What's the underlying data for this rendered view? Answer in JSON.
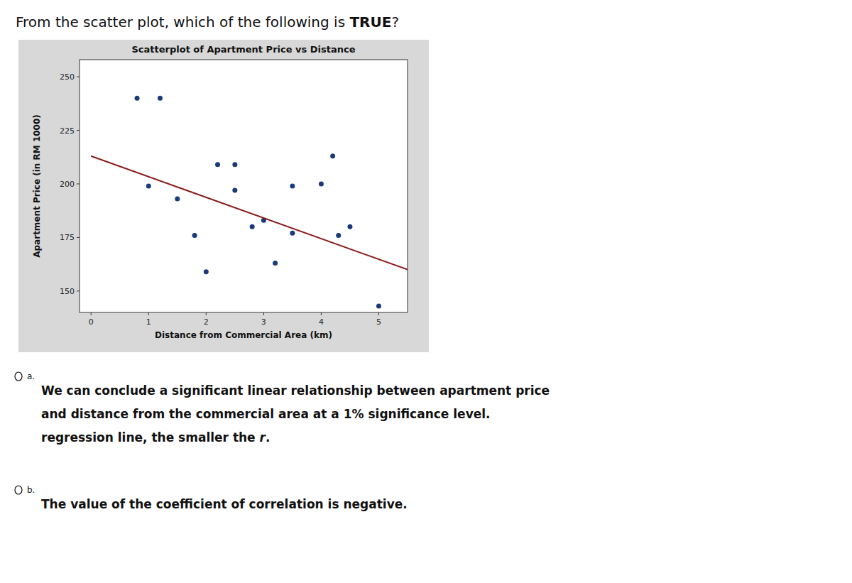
{
  "chart_data": {
    "type": "scatter",
    "title": "Scatterplot of Apartment Price vs Distance",
    "x_label": "Distance from Commercial Area (km)",
    "y_label": "Apartment Price (in RM 1000)",
    "series": [
      {
        "type": "scatter",
        "color": "#1a3a7a",
        "x": [
          0.8,
          1.2,
          1.0,
          1.5,
          1.8,
          2.0,
          2.2,
          2.5,
          2.5,
          2.8,
          3.0,
          3.2,
          3.5,
          3.5,
          4.0,
          4.2,
          4.3,
          4.5,
          5.0
        ],
        "values": [
          240,
          240,
          199,
          193,
          176,
          159,
          209,
          209,
          197,
          180,
          183,
          163,
          199,
          177,
          200,
          213,
          176,
          180,
          143
        ]
      },
      {
        "type": "line",
        "color": "#8b1a1a",
        "x": [
          0.0,
          5.5
        ],
        "values": [
          213,
          160
        ]
      }
    ],
    "xlim": [
      -0.2,
      5.5
    ],
    "ylim": [
      140,
      258
    ],
    "xticks": [
      0,
      1,
      2,
      3,
      4,
      5
    ],
    "yticks": [
      150,
      175,
      200,
      225,
      250
    ],
    "grid": false,
    "annotations": [
      {
        "parts": [
          "From the scatter plot, which of the following is ",
          "TRUE",
          "?"
        ]
      },
      {
        "label": "a.",
        "lines": [
          [
            "We can conclude a significant linear relationship between apartment price"
          ],
          [
            "and distance from the commercial area at a 1% significance level."
          ],
          [
            "regression line, the smaller the ",
            "r",
            "."
          ]
        ]
      },
      {
        "label": "b.",
        "lines": [
          [
            "The value of the coefficient of correlation is negative."
          ]
        ]
      }
    ]
  }
}
